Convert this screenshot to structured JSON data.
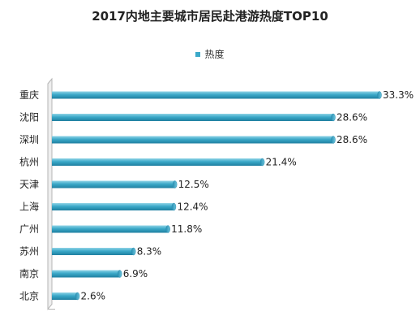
{
  "title": "2017内地主要城市居民赴港游热度TOP10",
  "legend": {
    "label": "热度",
    "color": "#3ba9c9"
  },
  "chart_data": {
    "type": "bar",
    "orientation": "horizontal",
    "title": "2017内地主要城市居民赴港游热度TOP10",
    "categories": [
      "重庆",
      "沈阳",
      "深圳",
      "杭州",
      "天津",
      "上海",
      "广州",
      "苏州",
      "南京",
      "北京"
    ],
    "series": [
      {
        "name": "热度",
        "values": [
          33.3,
          28.6,
          28.6,
          21.4,
          12.5,
          12.4,
          11.8,
          8.3,
          6.9,
          2.6
        ],
        "labels": [
          "33.3%",
          "28.6%",
          "28.6%",
          "21.4%",
          "12.5%",
          "12.4%",
          "11.8%",
          "8.3%",
          "6.9%",
          "2.6%"
        ]
      }
    ],
    "xlim": [
      0,
      33.3
    ],
    "grid": false,
    "legend_position": "top"
  }
}
